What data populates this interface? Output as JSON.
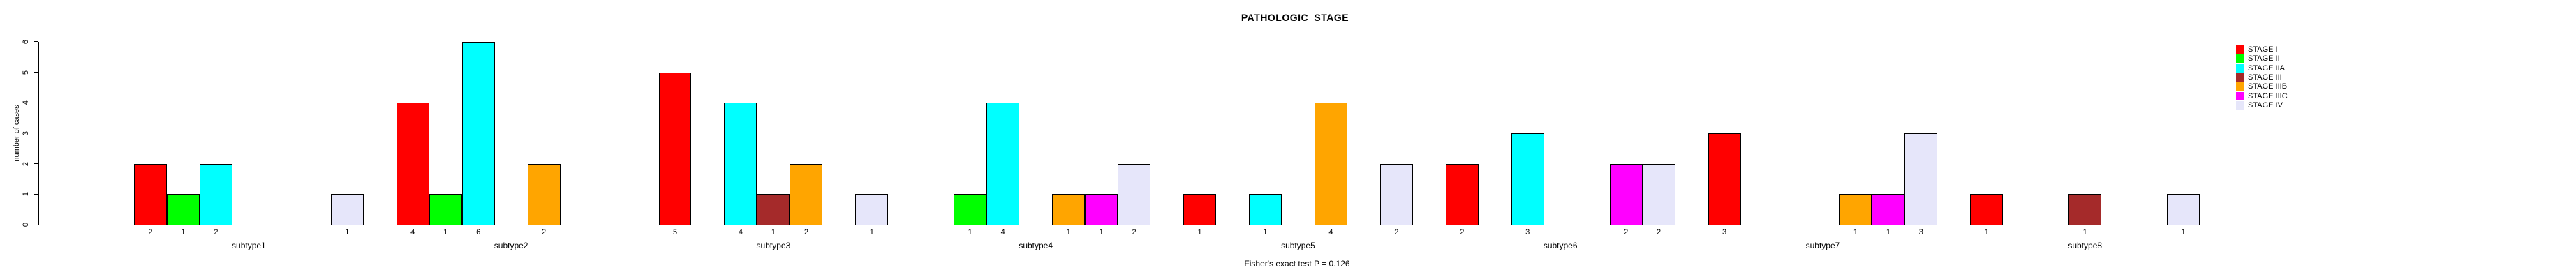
{
  "title": "PATHOLOGIC_STAGE",
  "footer": "Fisher's exact test P = 0.126",
  "y_axis": {
    "label": "number of cases",
    "ticks": [
      "0",
      "1",
      "2",
      "3",
      "4",
      "5",
      "6"
    ]
  },
  "legend": {
    "items": [
      {
        "label": "STAGE I",
        "color": "#FF0000"
      },
      {
        "label": "STAGE II",
        "color": "#00FF00"
      },
      {
        "label": "STAGE IIA",
        "color": "#00FFFF"
      },
      {
        "label": "STAGE III",
        "color": "#A52A2A"
      },
      {
        "label": "STAGE IIIB",
        "color": "#FFA500"
      },
      {
        "label": "STAGE IIIC",
        "color": "#FF00FF"
      },
      {
        "label": "STAGE IV",
        "color": "#E6E6FA"
      }
    ]
  },
  "chart_data": {
    "type": "bar",
    "title": "PATHOLOGIC_STAGE",
    "xlabel": "",
    "ylabel": "number of cases",
    "ylim": [
      0,
      6
    ],
    "yticks": [
      0,
      1,
      2,
      3,
      4,
      5,
      6
    ],
    "grid": false,
    "legend_position": "top-right",
    "annotation": "Fisher's exact test P = 0.126",
    "series_names": [
      "STAGE I",
      "STAGE II",
      "STAGE IIA",
      "STAGE III",
      "STAGE IIIB",
      "STAGE IIIC",
      "STAGE IV"
    ],
    "series_colors": [
      "#FF0000",
      "#00FF00",
      "#00FFFF",
      "#A52A2A",
      "#FFA500",
      "#FF00FF",
      "#E6E6FA"
    ],
    "categories": [
      "subtype1",
      "subtype2",
      "subtype3",
      "subtype4",
      "subtype5",
      "subtype6",
      "subtype7",
      "subtype8"
    ],
    "groups": [
      {
        "label": "subtype1",
        "values": [
          2,
          1,
          2,
          null,
          null,
          null,
          1
        ]
      },
      {
        "label": "subtype2",
        "values": [
          4,
          1,
          6,
          null,
          2,
          null,
          null
        ]
      },
      {
        "label": "subtype3",
        "values": [
          5,
          null,
          4,
          1,
          2,
          null,
          1
        ]
      },
      {
        "label": "subtype4",
        "values": [
          null,
          1,
          4,
          null,
          1,
          1,
          2
        ]
      },
      {
        "label": "subtype5",
        "values": [
          1,
          null,
          1,
          null,
          4,
          null,
          2
        ]
      },
      {
        "label": "subtype6",
        "values": [
          2,
          null,
          3,
          null,
          null,
          2,
          2
        ]
      },
      {
        "label": "subtype7",
        "values": [
          3,
          null,
          null,
          null,
          1,
          1,
          3
        ]
      },
      {
        "label": "subtype8",
        "values": [
          1,
          null,
          null,
          1,
          null,
          null,
          1
        ]
      }
    ]
  }
}
